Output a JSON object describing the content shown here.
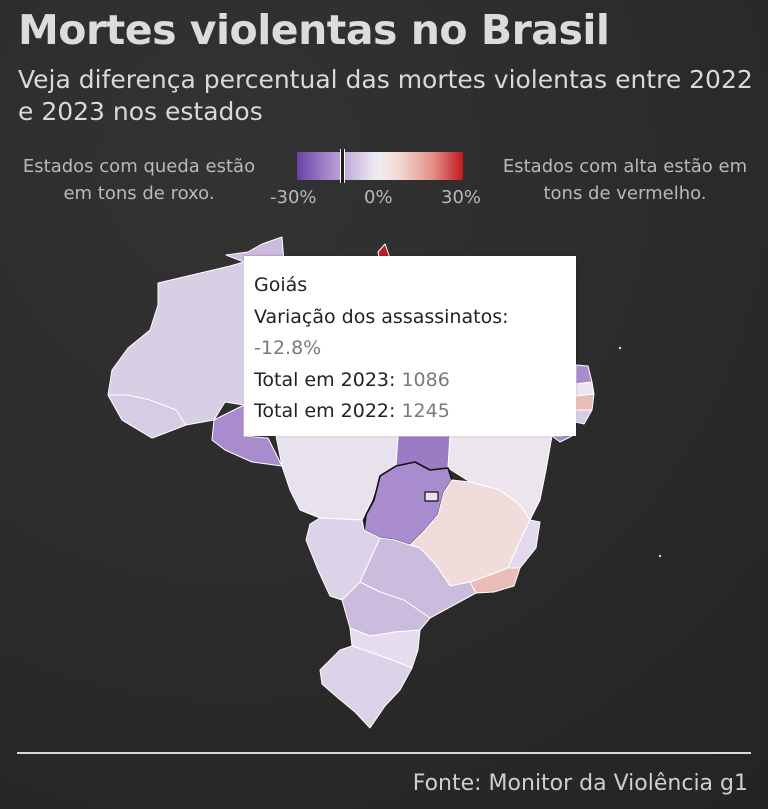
{
  "header": {
    "title": "Mortes violentas no Brasil",
    "subtitle": "Veja diferença percentual das mortes violentas entre 2022 e 2023 nos estados"
  },
  "legend": {
    "left_text": "Estados com queda estão em tons de roxo.",
    "right_text": "Estados com alta estão em tons de vermelho.",
    "ticks": [
      "-30%",
      "0%",
      "30%"
    ],
    "scale_min": -30,
    "scale_max": 30,
    "color_low": "#6a42a7",
    "color_mid": "#f0ecee",
    "color_high": "#c4181f"
  },
  "tooltip": {
    "state": "Goiás",
    "variation_label": "Variação dos assassinatos:",
    "variation_value": "-12.8%",
    "total_2023_label": "Total em 2023:",
    "total_2023_value": "1086",
    "total_2022_label": "Total em 2022:",
    "total_2022_value": "1245"
  },
  "footer": {
    "source": "Fonte: Monitor da Violência g1"
  }
}
